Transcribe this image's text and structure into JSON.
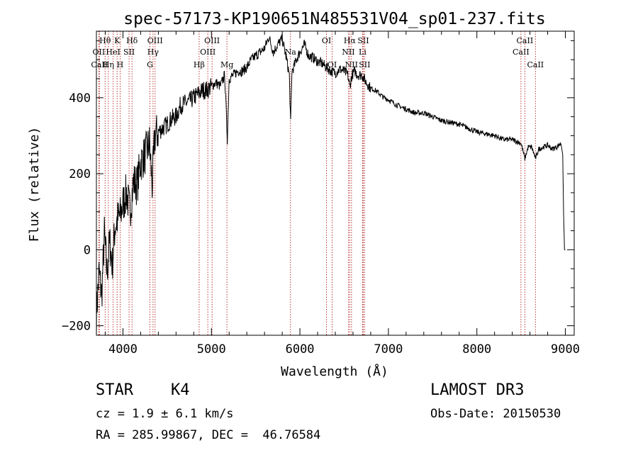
{
  "chart_data": {
    "type": "line",
    "title": "spec-57173-KP190651N485531V04_sp01-237.fits",
    "xlabel": "Wavelength (Å)",
    "ylabel": "Flux (relative)",
    "xlim": [
      3700,
      9100
    ],
    "ylim": [
      -225,
      575
    ],
    "x_ticks": [
      4000,
      5000,
      6000,
      7000,
      8000,
      9000
    ],
    "x_tick_labels": [
      "4000",
      "5000",
      "6000",
      "7000",
      "8000",
      "9000"
    ],
    "y_ticks": [
      -200,
      0,
      200,
      400
    ],
    "y_tick_labels": [
      "−200",
      "0",
      "200",
      "400"
    ],
    "series": [
      {
        "name": "flux",
        "x": [
          3700,
          3730,
          3760,
          3790,
          3820,
          3850,
          3880,
          3910,
          3940,
          3970,
          4000,
          4040,
          4080,
          4120,
          4160,
          4200,
          4250,
          4300,
          4330,
          4360,
          4400,
          4450,
          4500,
          4550,
          4600,
          4650,
          4700,
          4750,
          4800,
          4850,
          4900,
          4950,
          5000,
          5050,
          5100,
          5150,
          5180,
          5200,
          5250,
          5300,
          5350,
          5400,
          5450,
          5500,
          5550,
          5600,
          5650,
          5700,
          5750,
          5800,
          5850,
          5880,
          5895,
          5910,
          5930,
          5960,
          6000,
          6050,
          6100,
          6150,
          6200,
          6250,
          6300,
          6350,
          6400,
          6450,
          6500,
          6540,
          6563,
          6590,
          6620,
          6650,
          6700,
          6750,
          6800,
          6850,
          6900,
          6950,
          7000,
          7100,
          7200,
          7300,
          7400,
          7500,
          7600,
          7700,
          7800,
          7900,
          8000,
          8100,
          8200,
          8300,
          8400,
          8500,
          8542,
          8580,
          8620,
          8662,
          8700,
          8750,
          8800,
          8850,
          8900,
          8950,
          8970,
          8980,
          8990,
          9000
        ],
        "y": [
          -170,
          -60,
          -120,
          40,
          -60,
          20,
          -40,
          60,
          80,
          90,
          120,
          150,
          100,
          180,
          170,
          230,
          250,
          280,
          170,
          300,
          310,
          320,
          330,
          345,
          350,
          380,
          385,
          390,
          400,
          410,
          420,
          420,
          430,
          440,
          430,
          460,
          290,
          450,
          460,
          470,
          470,
          480,
          500,
          510,
          520,
          530,
          560,
          520,
          540,
          555,
          500,
          460,
          330,
          470,
          480,
          500,
          520,
          540,
          510,
          505,
          495,
          490,
          480,
          470,
          465,
          475,
          470,
          460,
          430,
          460,
          470,
          460,
          460,
          440,
          425,
          420,
          410,
          400,
          395,
          380,
          370,
          360,
          360,
          350,
          340,
          335,
          330,
          320,
          310,
          305,
          300,
          290,
          290,
          280,
          240,
          270,
          270,
          240,
          265,
          270,
          275,
          265,
          270,
          280,
          250,
          100,
          0,
          0
        ]
      }
    ],
    "line_marks": [
      {
        "label": "Hθ",
        "x": 3798,
        "row": 1
      },
      {
        "label": "OII",
        "x": 3727,
        "row": 2
      },
      {
        "label": "CaII",
        "x": 3734,
        "row": 3
      },
      {
        "label": "K",
        "x": 3934,
        "row": 1
      },
      {
        "label": "HeI",
        "x": 3889,
        "row": 2
      },
      {
        "label": "Hη",
        "x": 3835,
        "row": 3
      },
      {
        "label": "Hδ",
        "x": 4102,
        "row": 1
      },
      {
        "label": "SII",
        "x": 4069,
        "row": 2
      },
      {
        "label": "H",
        "x": 3968,
        "row": 3
      },
      {
        "label": "OIII",
        "x": 4363,
        "row": 1
      },
      {
        "label": "Hγ",
        "x": 4340,
        "row": 2
      },
      {
        "label": "G",
        "x": 4305,
        "row": 3
      },
      {
        "label": "OIII",
        "x": 5007,
        "row": 1
      },
      {
        "label": "OIII",
        "x": 4959,
        "row": 2
      },
      {
        "label": "Hβ",
        "x": 4861,
        "row": 3
      },
      {
        "label": "Mg",
        "x": 5175,
        "row": 3
      },
      {
        "label": "Na",
        "x": 5893,
        "row": 2
      },
      {
        "label": "OI",
        "x": 6300,
        "row": 1
      },
      {
        "label": "OI",
        "x": 6364,
        "row": 3
      },
      {
        "label": "Hα",
        "x": 6563,
        "row": 1
      },
      {
        "label": "NII",
        "x": 6548,
        "row": 2
      },
      {
        "label": "NII",
        "x": 6583,
        "row": 3
      },
      {
        "label": "SII",
        "x": 6716,
        "row": 1
      },
      {
        "label": "Li",
        "x": 6708,
        "row": 2
      },
      {
        "label": "SII",
        "x": 6731,
        "row": 3
      },
      {
        "label": "CaII",
        "x": 8542,
        "row": 1
      },
      {
        "label": "CaII",
        "x": 8498,
        "row": 2
      },
      {
        "label": "CaII",
        "x": 8662,
        "row": 3
      }
    ]
  },
  "info": {
    "object_class": "STAR",
    "subclass": "K4",
    "survey": "LAMOST DR3",
    "cz": "cz = 1.9 ± 6.1 km/s",
    "obs_date": "Obs-Date: 20150530",
    "coords": "RA = 285.99867, DEC =  46.76584"
  }
}
